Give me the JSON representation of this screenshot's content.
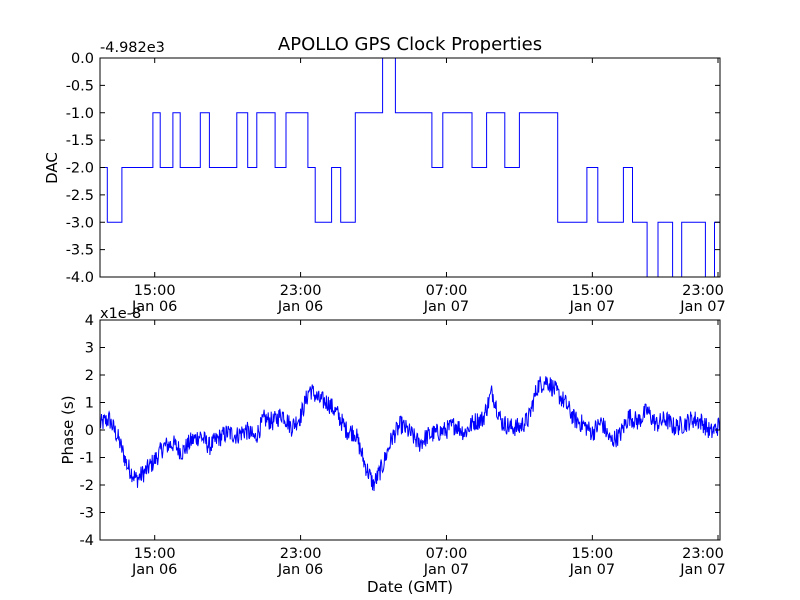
{
  "chart_data": [
    {
      "type": "line",
      "title": "APOLLO GPS Clock Properties",
      "ylabel": "DAC",
      "offset_label": "-4.982e3",
      "xlabel": "",
      "ylim": [
        -4.0,
        0.0
      ],
      "yticks": [
        "0.0",
        "-0.5",
        "-1.0",
        "-1.5",
        "-2.0",
        "-2.5",
        "-3.0",
        "-3.5",
        "-4.0"
      ],
      "xlim_hours": [
        0,
        34
      ],
      "xticks": [
        {
          "hour": 3,
          "time": "15:00",
          "date": "Jan 06"
        },
        {
          "hour": 11,
          "time": "23:00",
          "date": "Jan 06"
        },
        {
          "hour": 19,
          "time": "07:00",
          "date": "Jan 07"
        },
        {
          "hour": 27,
          "time": "15:00",
          "date": "Jan 07"
        },
        {
          "hour": 35,
          "time": "23:00",
          "date": "Jan 07"
        }
      ],
      "color": "#0000ff",
      "series": [
        {
          "name": "DAC",
          "x_hours": [
            0.0,
            0.3,
            0.4,
            1.1,
            1.2,
            1.5,
            1.6,
            2.8,
            2.9,
            3.2,
            3.3,
            3.5,
            3.9,
            4.0,
            4.3,
            4.4,
            5.3,
            5.5,
            5.8,
            6.0,
            7.2,
            7.5,
            7.9,
            8.1,
            8.4,
            8.6,
            9.4,
            9.6,
            10.0,
            10.2,
            11.2,
            11.4,
            11.6,
            11.8,
            12.5,
            12.7,
            13.0,
            13.2,
            13.8,
            14.0,
            15.2,
            15.5,
            16.0,
            16.2,
            16.4,
            18.0,
            18.2,
            18.6,
            18.8,
            20.2,
            20.4,
            21.0,
            21.2,
            22.0,
            22.2,
            22.8,
            23.0,
            24.0,
            25.1,
            25.3,
            26.5,
            26.7,
            27.0,
            27.3,
            28.5,
            28.7,
            29.0,
            29.2,
            29.8,
            30.0,
            30.4,
            30.6,
            31.2,
            31.4,
            31.7,
            31.9,
            32.2,
            33.0,
            33.2,
            33.5,
            33.7,
            34.0
          ],
          "y": [
            -2.0,
            -2.0,
            -3.0,
            -3.0,
            -2.0,
            -2.0,
            -2.0,
            -2.0,
            -1.0,
            -1.0,
            -2.0,
            -2.0,
            -2.0,
            -1.0,
            -1.0,
            -2.0,
            -2.0,
            -1.0,
            -1.0,
            -2.0,
            -2.0,
            -1.0,
            -1.0,
            -2.0,
            -2.0,
            -1.0,
            -1.0,
            -2.0,
            -2.0,
            -1.0,
            -1.0,
            -2.0,
            -2.0,
            -3.0,
            -3.0,
            -2.0,
            -2.0,
            -3.0,
            -3.0,
            -1.0,
            -1.0,
            0.0,
            0.0,
            -1.0,
            -1.0,
            -1.0,
            -2.0,
            -2.0,
            -1.0,
            -1.0,
            -2.0,
            -2.0,
            -1.0,
            -1.0,
            -2.0,
            -2.0,
            -1.0,
            -1.0,
            -3.0,
            -3.0,
            -3.0,
            -2.0,
            -2.0,
            -3.0,
            -3.0,
            -2.0,
            -2.0,
            -3.0,
            -3.0,
            -4.0,
            -4.0,
            -3.0,
            -3.0,
            -4.0,
            -4.0,
            -3.0,
            -3.0,
            -3.0,
            -4.0,
            -4.0,
            -3.0,
            -3.0
          ]
        }
      ]
    },
    {
      "type": "line",
      "title": "",
      "ylabel": "Phase (s)",
      "offset_label": "x1e-8",
      "xlabel": "Date (GMT)",
      "ylim": [
        -4,
        4
      ],
      "yticks": [
        "4",
        "3",
        "2",
        "1",
        "0",
        "-1",
        "-2",
        "-3",
        "-4"
      ],
      "xlim_hours": [
        0,
        34
      ],
      "xticks": [
        {
          "hour": 3,
          "time": "15:00",
          "date": "Jan 06"
        },
        {
          "hour": 11,
          "time": "23:00",
          "date": "Jan 06"
        },
        {
          "hour": 19,
          "time": "07:00",
          "date": "Jan 07"
        },
        {
          "hour": 27,
          "time": "15:00",
          "date": "Jan 07"
        },
        {
          "hour": 35,
          "time": "23:00",
          "date": "Jan 07"
        }
      ],
      "color": "#0000ff",
      "series": [
        {
          "name": "Phase",
          "x_hours": [
            0,
            0.5,
            1.0,
            1.5,
            2.0,
            2.5,
            3.0,
            3.5,
            4.0,
            4.5,
            5.0,
            5.5,
            6.0,
            6.5,
            7.0,
            7.5,
            8.0,
            8.5,
            9.0,
            9.5,
            10.0,
            10.5,
            11.0,
            11.5,
            12.0,
            12.5,
            13.0,
            13.5,
            14.0,
            14.5,
            15.0,
            15.5,
            16.0,
            16.5,
            17.0,
            17.5,
            18.0,
            18.5,
            19.0,
            19.5,
            20.0,
            20.5,
            21.0,
            21.5,
            22.0,
            22.5,
            23.0,
            23.5,
            24.0,
            24.5,
            25.0,
            25.5,
            26.0,
            26.5,
            27.0,
            27.5,
            28.0,
            28.5,
            29.0,
            29.5,
            30.0,
            30.5,
            31.0,
            31.5,
            32.0,
            32.5,
            33.0,
            33.5,
            34.0
          ],
          "y": [
            0.2,
            0.4,
            -0.3,
            -1.3,
            -1.8,
            -1.5,
            -1.1,
            -0.6,
            -0.5,
            -0.8,
            -0.4,
            -0.2,
            -0.6,
            -0.3,
            -0.1,
            -0.2,
            0.0,
            -0.3,
            0.4,
            0.3,
            0.6,
            0.1,
            0.5,
            1.5,
            1.1,
            1.0,
            0.6,
            0.0,
            -0.1,
            -1.2,
            -2.0,
            -1.3,
            -0.3,
            0.2,
            -0.1,
            -0.5,
            -0.2,
            -0.1,
            0.0,
            0.2,
            -0.1,
            0.3,
            0.4,
            1.4,
            0.3,
            0.1,
            0.1,
            0.4,
            1.6,
            1.8,
            1.4,
            1.0,
            0.4,
            0.2,
            -0.1,
            0.3,
            -0.4,
            -0.2,
            0.5,
            0.3,
            0.7,
            0.2,
            0.4,
            0.1,
            0.2,
            0.4,
            0.3,
            -0.1,
            0.2
          ]
        }
      ]
    }
  ]
}
